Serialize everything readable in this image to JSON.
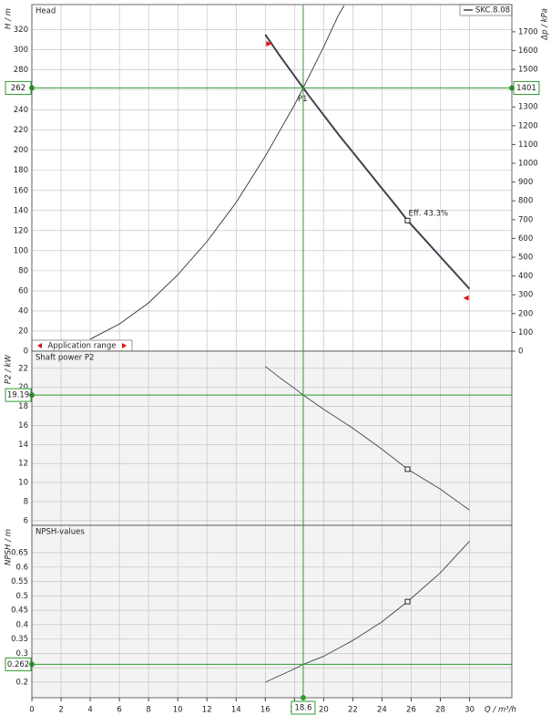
{
  "chart_data": [
    {
      "type": "line",
      "title": "Head",
      "y_label": "H / m",
      "y2_label": "Δp / kPa",
      "xlim": [
        0,
        32.9
      ],
      "ylim": [
        0,
        345
      ],
      "yticks": [
        0,
        20,
        40,
        60,
        80,
        100,
        120,
        140,
        160,
        180,
        200,
        220,
        240,
        260,
        280,
        300,
        320
      ],
      "y2lim": [
        0,
        1845
      ],
      "y2ticks": [
        0,
        100,
        200,
        300,
        400,
        500,
        600,
        700,
        800,
        900,
        1000,
        1100,
        1200,
        1300,
        1400,
        1500,
        1600,
        1700
      ],
      "grid": true,
      "legend": "upper right",
      "series": [
        {
          "name": "SKC.8.08",
          "color": "#3d4450",
          "x": [
            16,
            17,
            18,
            18.6,
            19,
            20,
            21,
            22,
            23,
            24,
            25,
            25.75,
            26,
            27,
            28,
            29,
            30
          ],
          "values": [
            315,
            294,
            274,
            262,
            254,
            235,
            216,
            198,
            180,
            162,
            144,
            130,
            126,
            110,
            94,
            78,
            62
          ]
        },
        {
          "color": "#333333",
          "x": [
            4,
            6,
            8,
            10,
            12,
            14,
            16,
            18,
            18.6,
            20,
            21,
            21.4
          ],
          "values": [
            12,
            27,
            48,
            76,
            109,
            148,
            194,
            245,
            262,
            303,
            334,
            344
          ]
        }
      ],
      "operating_point": {
        "y": 262,
        "y2": 1401,
        "label": "P1"
      },
      "marker": {
        "x": 25.75,
        "y": 130,
        "label": "Eff.  43.3%"
      },
      "application_range": {
        "label": "Application range",
        "x": [
          16,
          30
        ]
      }
    },
    {
      "type": "line",
      "title": "Shaft power P2",
      "y_label": "P2 / kW",
      "xlim": [
        0,
        32.9
      ],
      "ylim": [
        5.5,
        23.8
      ],
      "yticks": [
        6,
        8,
        10,
        12,
        14,
        16,
        18,
        20,
        22
      ],
      "grid": true,
      "series": [
        {
          "color": "#3d4450",
          "x": [
            16,
            17,
            18,
            18.6,
            20,
            22,
            24,
            25.75,
            28,
            30
          ],
          "values": [
            22.2,
            21.0,
            19.9,
            19.19,
            17.7,
            15.7,
            13.5,
            11.4,
            9.3,
            7.1
          ]
        }
      ],
      "operating_point": {
        "y": 19.19
      },
      "marker": {
        "x": 25.75,
        "y": 11.4
      }
    },
    {
      "type": "line",
      "title": "NPSH-values",
      "y_label": "NPSH / m",
      "x_label": "Q / m³/h",
      "xlim": [
        0,
        32.9
      ],
      "ylim": [
        0.146,
        0.745
      ],
      "xticks": [
        0,
        2,
        4,
        6,
        8,
        10,
        12,
        14,
        16,
        18,
        20,
        22,
        24,
        26,
        28,
        30
      ],
      "yticks": [
        0.2,
        0.25,
        0.3,
        0.35,
        0.4,
        0.45,
        0.5,
        0.55,
        0.6,
        0.65
      ],
      "grid": true,
      "series": [
        {
          "color": "#3d4450",
          "x": [
            16,
            18,
            18.6,
            20,
            22,
            24,
            25.75,
            28,
            30
          ],
          "values": [
            0.2,
            0.246,
            0.262,
            0.29,
            0.345,
            0.41,
            0.48,
            0.58,
            0.69
          ]
        }
      ],
      "operating_point": {
        "x": 18.6,
        "y": 0.262
      },
      "marker": {
        "x": 25.75,
        "y": 0.48
      }
    }
  ]
}
